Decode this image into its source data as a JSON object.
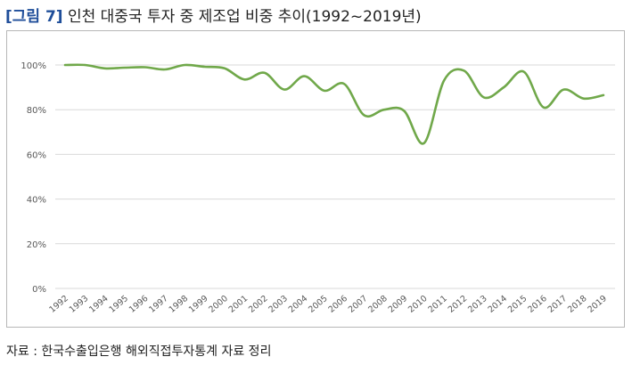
{
  "title": {
    "figure_label": "[그림 7]",
    "text": "인천 대중국 투자 중 제조업 비중 추이(1992~2019년)"
  },
  "source": "자료 : 한국수출입은행 해외직접투자통계 자료 정리",
  "colors": {
    "line": "#70a84a",
    "grid": "#d9d9d9",
    "tick_text": "#595959"
  },
  "chart_data": {
    "type": "line",
    "categories": [
      "1992",
      "1993",
      "1994",
      "1995",
      "1996",
      "1997",
      "1998",
      "1999",
      "2000",
      "2001",
      "2002",
      "2003",
      "2004",
      "2005",
      "2006",
      "2007",
      "2008",
      "2009",
      "2010",
      "2011",
      "2012",
      "2013",
      "2014",
      "2015",
      "2016",
      "2017",
      "2018",
      "2019"
    ],
    "series": [
      {
        "values": [
          100,
          100,
          98.5,
          98.8,
          99,
          98,
          100,
          99.2,
          98.5,
          93.5,
          96.5,
          89,
          95,
          88.5,
          91.5,
          77.5,
          80,
          79.5,
          65,
          93,
          97.5,
          85.5,
          90,
          97,
          81,
          89,
          85,
          86.5
        ]
      }
    ],
    "y_ticks": [
      "0%",
      "20%",
      "40%",
      "60%",
      "80%",
      "100%"
    ],
    "ylim": [
      0,
      100
    ],
    "xlabel": "",
    "ylabel": "",
    "grid": "horizontal",
    "legend": "none"
  }
}
